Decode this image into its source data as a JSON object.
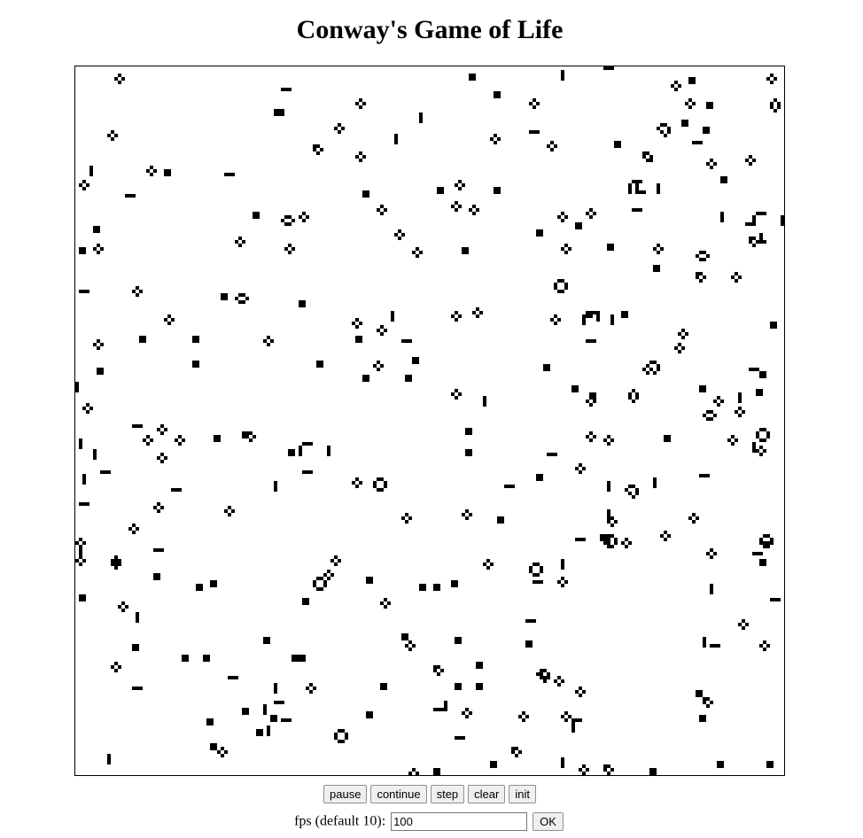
{
  "header": {
    "title": "Conway's Game of Life"
  },
  "controls": {
    "pause_label": "pause",
    "continue_label": "continue",
    "step_label": "step",
    "clear_label": "clear",
    "init_label": "init"
  },
  "fps": {
    "label": "fps (default 10):",
    "value": "100",
    "ok_label": "OK"
  },
  "board": {
    "cols": 200,
    "rows": 200,
    "live_color": "#000000",
    "dead_color": "#ffffff"
  }
}
